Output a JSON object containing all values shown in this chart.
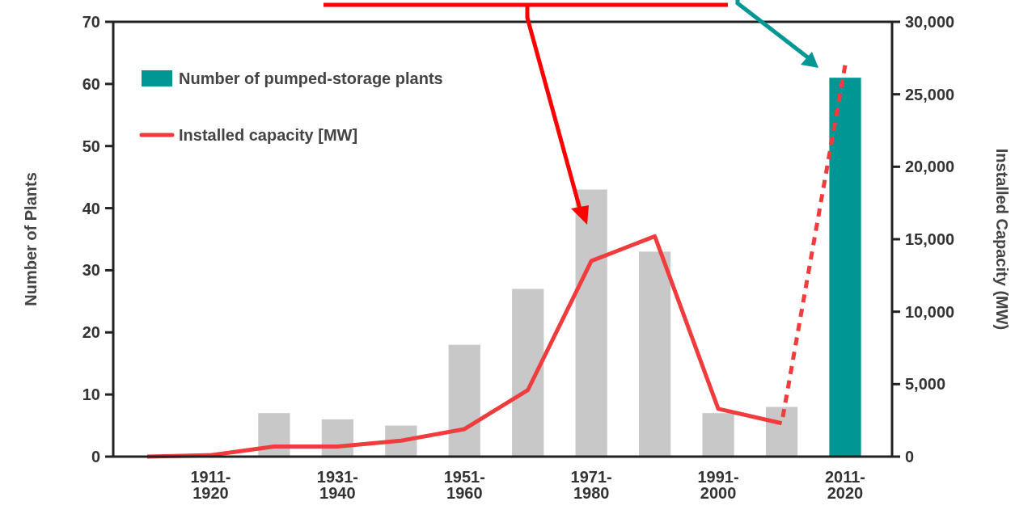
{
  "chart_data": {
    "type": "bar",
    "ylabel": "Number of Plants",
    "y2label": "Installed Capacity (MW)",
    "categories": [
      null,
      "1911-1920",
      null,
      "1931-1940",
      null,
      "1951-1960",
      null,
      "1971-1980",
      null,
      "1991-2000",
      null,
      "2011-2020"
    ],
    "series": [
      {
        "name": "Number of pumped-storage plants",
        "color": "#009693",
        "colors": [
          "#c8c8c8",
          "#c8c8c8",
          "#c8c8c8",
          "#c8c8c8",
          "#c8c8c8",
          "#c8c8c8",
          "#c8c8c8",
          "#c8c8c8",
          "#c8c8c8",
          "#c8c8c8",
          "#c8c8c8",
          "#009693"
        ],
        "values": [
          0,
          0,
          7,
          6,
          5,
          18,
          27,
          43,
          33,
          7,
          8,
          61
        ]
      },
      {
        "type": "line",
        "name": "Installed capacity [MW]",
        "color": "#f03c3c",
        "axis": "y2",
        "line_style": "solid",
        "values": [
          0,
          100,
          700,
          700,
          1100,
          1900,
          4600,
          13500,
          15200,
          3300,
          2300,
          null
        ]
      },
      {
        "type": "line",
        "color": "#f03c3c",
        "axis": "y2",
        "line_style": "dashed",
        "values": [
          null,
          null,
          null,
          null,
          null,
          null,
          null,
          null,
          null,
          null,
          2300,
          27000
        ]
      }
    ],
    "ylim": [
      0,
      70
    ],
    "yticks": [
      0,
      10,
      20,
      30,
      40,
      50,
      60,
      70
    ],
    "y2lim": [
      0,
      30000
    ],
    "y2ticks": [
      {
        "value": 0,
        "label": "0"
      },
      {
        "value": 5000,
        "label": "5,000"
      },
      {
        "value": 10000,
        "label": "10,000"
      },
      {
        "value": 15000,
        "label": "15,000"
      },
      {
        "value": 20000,
        "label": "20,000"
      },
      {
        "value": 25000,
        "label": "25,000"
      },
      {
        "value": 30000,
        "label": "30,000"
      }
    ],
    "grid": false,
    "legend": "top left"
  }
}
